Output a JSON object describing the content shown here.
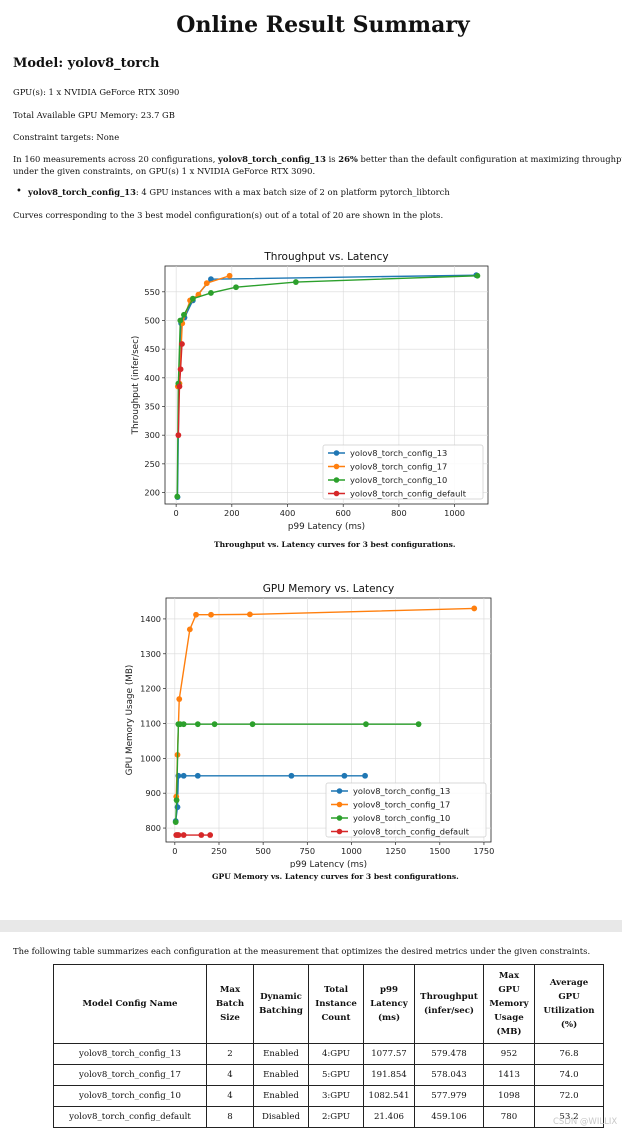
{
  "report": {
    "title": "Online Result Summary",
    "model_heading": "Model: yolov8_torch",
    "gpus": "GPU(s): 1 x NVIDIA GeForce RTX 3090",
    "memory": "Total Available GPU Memory: 23.7 GB",
    "constraints": "Constraint targets: None",
    "summary_pre": "In 160 measurements across 20 configurations, ",
    "summary_bold_model": "yolov8_torch_config_13",
    "summary_mid": " is ",
    "summary_bold_pct": "26%",
    "summary_post": " better than the default configuration at maximizing throughput",
    "summary_line2": "under the given constraints, on GPU(s) 1 x NVIDIA GeForce RTX 3090.",
    "bullet_bold": "yolov8_torch_config_13",
    "bullet_text": ": 4 GPU instances with a max batch size of 2 on platform pytorch_libtorch",
    "curves_note": "Curves corresponding to the 3 best model configuration(s) out of a total of 20 are shown in the plots.",
    "caption1": "Throughput vs. Latency curves for 3 best configurations.",
    "caption2": "GPU Memory vs. Latency curves for 3 best configurations.",
    "table_intro": "The following table summarizes each configuration at the measurement that optimizes the desired metrics under the given constraints."
  },
  "colors": {
    "config_13": "#1f77b4",
    "config_17": "#ff7f0e",
    "config_10": "#2ca02c",
    "config_default": "#d62728"
  },
  "chart_data": [
    {
      "type": "line",
      "title": "Throughput vs. Latency",
      "xlabel": "p99 Latency (ms)",
      "ylabel": "Throughput (infer/sec)",
      "xlim": [
        -40,
        1120
      ],
      "ylim": [
        180,
        595
      ],
      "xticks": [
        0,
        200,
        400,
        600,
        800,
        1000
      ],
      "yticks": [
        200,
        250,
        300,
        350,
        400,
        450,
        500,
        550
      ],
      "grid": true,
      "legend": "lower-right",
      "series": [
        {
          "name": "yolov8_torch_config_13",
          "color": "#1f77b4",
          "x": [
            5,
            10,
            18,
            30,
            60,
            125,
            1078
          ],
          "y": [
            192,
            385,
            495,
            505,
            535,
            572,
            579
          ]
        },
        {
          "name": "yolov8_torch_config_17",
          "color": "#ff7f0e",
          "x": [
            6,
            12,
            22,
            50,
            80,
            110,
            192
          ],
          "y": [
            385,
            390,
            495,
            535,
            545,
            565,
            578
          ]
        },
        {
          "name": "yolov8_torch_config_10",
          "color": "#2ca02c",
          "x": [
            4,
            8,
            15,
            28,
            60,
            125,
            215,
            430,
            1082
          ],
          "y": [
            193,
            390,
            500,
            510,
            538,
            548,
            558,
            567,
            578
          ]
        },
        {
          "name": "yolov8_torch_config_default",
          "color": "#d62728",
          "x": [
            8,
            12,
            16,
            21
          ],
          "y": [
            300,
            385,
            415,
            459
          ]
        }
      ]
    },
    {
      "type": "line",
      "title": "GPU Memory vs. Latency",
      "xlabel": "p99 Latency (ms)",
      "ylabel": "GPU Memory Usage (MB)",
      "xlim": [
        -50,
        1790
      ],
      "ylim": [
        760,
        1460
      ],
      "xticks": [
        0,
        250,
        500,
        750,
        1000,
        1250,
        1500,
        1750
      ],
      "yticks": [
        800,
        900,
        1000,
        1100,
        1200,
        1300,
        1400
      ],
      "grid": true,
      "legend": "lower-right",
      "series": [
        {
          "name": "yolov8_torch_config_13",
          "color": "#1f77b4",
          "x": [
            5,
            15,
            20,
            50,
            130,
            660,
            960,
            1077
          ],
          "y": [
            820,
            860,
            950,
            950,
            950,
            950,
            950,
            950
          ]
        },
        {
          "name": "yolov8_torch_config_17",
          "color": "#ff7f0e",
          "x": [
            8,
            15,
            25,
            85,
            120,
            205,
            425,
            1695
          ],
          "y": [
            890,
            1010,
            1170,
            1370,
            1412,
            1412,
            1413,
            1430
          ]
        },
        {
          "name": "yolov8_torch_config_10",
          "color": "#2ca02c",
          "x": [
            5,
            10,
            20,
            30,
            50,
            130,
            225,
            440,
            1082,
            1380
          ],
          "y": [
            817,
            880,
            1098,
            1098,
            1098,
            1098,
            1098,
            1098,
            1098,
            1098
          ]
        },
        {
          "name": "yolov8_torch_config_default",
          "color": "#d62728",
          "x": [
            8,
            15,
            21,
            50,
            150,
            200
          ],
          "y": [
            780,
            780,
            780,
            780,
            780,
            780
          ]
        }
      ]
    }
  ],
  "table": {
    "headers": [
      [
        "Model Config Name"
      ],
      [
        "Max",
        "Batch",
        "Size"
      ],
      [
        "Dynamic",
        "Batching"
      ],
      [
        "Total",
        "Instance",
        "Count"
      ],
      [
        "p99",
        "Latency",
        "(ms)"
      ],
      [
        "Throughput",
        "(infer/sec)"
      ],
      [
        "Max",
        "GPU",
        "Memory",
        "Usage",
        "(MB)"
      ],
      [
        "Average",
        "GPU",
        "Utilization",
        "(%)"
      ]
    ],
    "rows": [
      [
        "yolov8_torch_config_13",
        "2",
        "Enabled",
        "4:GPU",
        "1077.57",
        "579.478",
        "952",
        "76.8"
      ],
      [
        "yolov8_torch_config_17",
        "4",
        "Enabled",
        "5:GPU",
        "191.854",
        "578.043",
        "1413",
        "74.0"
      ],
      [
        "yolov8_torch_config_10",
        "4",
        "Enabled",
        "3:GPU",
        "1082.541",
        "577.979",
        "1098",
        "72.0"
      ],
      [
        "yolov8_torch_config_default",
        "8",
        "Disabled",
        "2:GPU",
        "21.406",
        "459.106",
        "780",
        "53.2"
      ]
    ]
  },
  "watermark": "CSDN @WILLIX"
}
